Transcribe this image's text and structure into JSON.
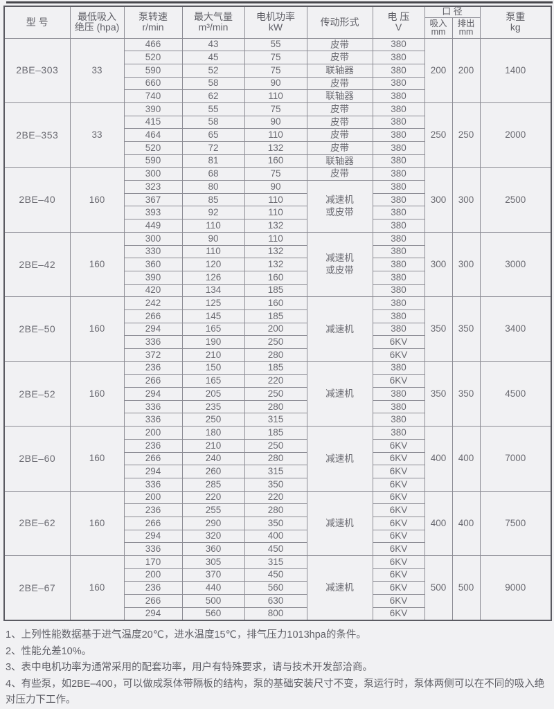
{
  "table": {
    "headers": {
      "model": "型  号",
      "pressure": [
        "最低吸入",
        "绝压 (hpa)"
      ],
      "speed": [
        "泵转速",
        "r/min"
      ],
      "volume": [
        "最大气量",
        "m³/min"
      ],
      "power": [
        "电机功率",
        "kW"
      ],
      "transmission": "传动形式",
      "voltage": [
        "电  压",
        "V"
      ],
      "caliber": "口  径",
      "suction": [
        "吸入",
        "mm"
      ],
      "discharge": [
        "排出",
        "mm"
      ],
      "weight": [
        "泵重",
        "kg"
      ]
    },
    "blocks": [
      {
        "model": "2BE–303",
        "pressure": "33",
        "rows": [
          {
            "speed": "466",
            "volume": "43",
            "power": "55",
            "voltage": "380"
          },
          {
            "speed": "520",
            "volume": "45",
            "power": "75",
            "voltage": "380"
          },
          {
            "speed": "590",
            "volume": "52",
            "power": "75",
            "voltage": "380"
          },
          {
            "speed": "660",
            "volume": "58",
            "power": "90",
            "voltage": "380"
          },
          {
            "speed": "740",
            "volume": "62",
            "power": "110",
            "voltage": "380"
          }
        ],
        "transmission": [
          {
            "text": "皮带",
            "span": 1
          },
          {
            "text": "皮带",
            "span": 1
          },
          {
            "text": "联轴器",
            "span": 1
          },
          {
            "text": "皮带",
            "span": 1
          },
          {
            "text": "联轴器",
            "span": 1
          }
        ],
        "suction": "200",
        "discharge": "200",
        "weight": "1400"
      },
      {
        "model": "2BE–353",
        "pressure": "33",
        "rows": [
          {
            "speed": "390",
            "volume": "55",
            "power": "75",
            "voltage": "380"
          },
          {
            "speed": "415",
            "volume": "58",
            "power": "90",
            "voltage": "380"
          },
          {
            "speed": "464",
            "volume": "65",
            "power": "110",
            "voltage": "380"
          },
          {
            "speed": "520",
            "volume": "72",
            "power": "132",
            "voltage": "380"
          },
          {
            "speed": "590",
            "volume": "81",
            "power": "160",
            "voltage": "380"
          }
        ],
        "transmission": [
          {
            "text": "皮带",
            "span": 1
          },
          {
            "text": "皮带",
            "span": 1
          },
          {
            "text": "皮带",
            "span": 1
          },
          {
            "text": "皮带",
            "span": 1
          },
          {
            "text": "联轴器",
            "span": 1
          }
        ],
        "suction": "250",
        "discharge": "250",
        "weight": "2000"
      },
      {
        "model": "2BE–40",
        "pressure": "160",
        "rows": [
          {
            "speed": "300",
            "volume": "68",
            "power": "75",
            "voltage": "380"
          },
          {
            "speed": "323",
            "volume": "80",
            "power": "90",
            "voltage": "380"
          },
          {
            "speed": "367",
            "volume": "85",
            "power": "110",
            "voltage": "380"
          },
          {
            "speed": "393",
            "volume": "92",
            "power": "110",
            "voltage": "380"
          },
          {
            "speed": "449",
            "volume": "110",
            "power": "132",
            "voltage": "380"
          }
        ],
        "transmission": [
          {
            "text": "皮带",
            "span": 1
          },
          {
            "text": "减速机\n或皮带",
            "span": 4
          }
        ],
        "suction": "300",
        "discharge": "300",
        "weight": "2500"
      },
      {
        "model": "2BE–42",
        "pressure": "160",
        "rows": [
          {
            "speed": "300",
            "volume": "90",
            "power": "110",
            "voltage": "380"
          },
          {
            "speed": "330",
            "volume": "110",
            "power": "132",
            "voltage": "380"
          },
          {
            "speed": "360",
            "volume": "120",
            "power": "132",
            "voltage": "380"
          },
          {
            "speed": "390",
            "volume": "126",
            "power": "160",
            "voltage": "380"
          },
          {
            "speed": "420",
            "volume": "134",
            "power": "185",
            "voltage": "380"
          }
        ],
        "transmission": [
          {
            "text": "减速机\n或皮带",
            "span": 5
          }
        ],
        "suction": "300",
        "discharge": "300",
        "weight": "3000"
      },
      {
        "model": "2BE–50",
        "pressure": "160",
        "rows": [
          {
            "speed": "242",
            "volume": "125",
            "power": "160",
            "voltage": "380"
          },
          {
            "speed": "266",
            "volume": "145",
            "power": "185",
            "voltage": "380"
          },
          {
            "speed": "294",
            "volume": "165",
            "power": "200",
            "voltage": "380"
          },
          {
            "speed": "336",
            "volume": "190",
            "power": "250",
            "voltage": "6KV"
          },
          {
            "speed": "372",
            "volume": "210",
            "power": "280",
            "voltage": "6KV"
          }
        ],
        "transmission": [
          {
            "text": "减速机",
            "span": 5
          }
        ],
        "suction": "350",
        "discharge": "350",
        "weight": "3400"
      },
      {
        "model": "2BE–52",
        "pressure": "160",
        "rows": [
          {
            "speed": "236",
            "volume": "150",
            "power": "185",
            "voltage": "380"
          },
          {
            "speed": "266",
            "volume": "165",
            "power": "220",
            "voltage": "6KV"
          },
          {
            "speed": "294",
            "volume": "205",
            "power": "250",
            "voltage": "380"
          },
          {
            "speed": "336",
            "volume": "235",
            "power": "280",
            "voltage": "380"
          },
          {
            "speed": "336",
            "volume": "250",
            "power": "315",
            "voltage": "380"
          }
        ],
        "transmission": [
          {
            "text": "减速机",
            "span": 5
          }
        ],
        "suction": "350",
        "discharge": "350",
        "weight": "4500"
      },
      {
        "model": "2BE–60",
        "pressure": "160",
        "rows": [
          {
            "speed": "200",
            "volume": "180",
            "power": "185",
            "voltage": "380"
          },
          {
            "speed": "236",
            "volume": "210",
            "power": "250",
            "voltage": "6KV"
          },
          {
            "speed": "266",
            "volume": "240",
            "power": "280",
            "voltage": "6KV"
          },
          {
            "speed": "294",
            "volume": "260",
            "power": "315",
            "voltage": "6KV"
          },
          {
            "speed": "336",
            "volume": "285",
            "power": "350",
            "voltage": "6KV"
          }
        ],
        "transmission": [
          {
            "text": "减速机",
            "span": 5
          }
        ],
        "suction": "400",
        "discharge": "400",
        "weight": "7000"
      },
      {
        "model": "2BE–62",
        "pressure": "160",
        "rows": [
          {
            "speed": "200",
            "volume": "220",
            "power": "220",
            "voltage": "6KV"
          },
          {
            "speed": "236",
            "volume": "255",
            "power": "280",
            "voltage": "6KV"
          },
          {
            "speed": "266",
            "volume": "290",
            "power": "350",
            "voltage": "6KV"
          },
          {
            "speed": "294",
            "volume": "320",
            "power": "400",
            "voltage": "6KV"
          },
          {
            "speed": "336",
            "volume": "360",
            "power": "450",
            "voltage": "6KV"
          }
        ],
        "transmission": [
          {
            "text": "减速机",
            "span": 5
          }
        ],
        "suction": "400",
        "discharge": "400",
        "weight": "7500"
      },
      {
        "model": "2BE–67",
        "pressure": "160",
        "rows": [
          {
            "speed": "170",
            "volume": "305",
            "power": "315",
            "voltage": "6KV"
          },
          {
            "speed": "200",
            "volume": "370",
            "power": "450",
            "voltage": "6KV"
          },
          {
            "speed": "236",
            "volume": "440",
            "power": "560",
            "voltage": "6KV"
          },
          {
            "speed": "266",
            "volume": "500",
            "power": "630",
            "voltage": "6KV"
          },
          {
            "speed": "294",
            "volume": "560",
            "power": "800",
            "voltage": "6KV"
          }
        ],
        "transmission": [
          {
            "text": "减速机",
            "span": 5
          }
        ],
        "suction": "500",
        "discharge": "500",
        "weight": "9000"
      }
    ]
  },
  "notes": [
    "1、上列性能数据基于进气温度20℃，进水温度15℃，排气压力1013hpa的条件。",
    "2、性能允差10%。",
    "3、表中电机功率为通常采用的配套功率，用户有特殊要求，请与技术开发部洽商。",
    "4、有些泵，如2BE–400，可以做成泵体带隔板的结构，泵的基础安装尺寸不变，泵运行时，泵体两侧可以在不同的吸入绝对压力下工作。"
  ]
}
